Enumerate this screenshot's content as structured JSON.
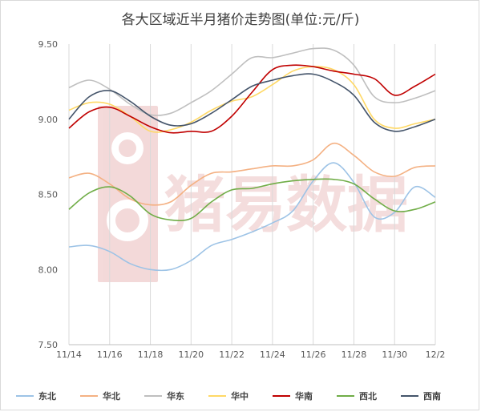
{
  "chart_data": {
    "type": "line",
    "title": "各大区域近半月猪价走势图(单位:元/斤)",
    "x": [
      "11/14",
      "11/15",
      "11/16",
      "11/17",
      "11/18",
      "11/19",
      "11/20",
      "11/21",
      "11/22",
      "11/23",
      "11/24",
      "11/25",
      "11/26",
      "11/27",
      "11/28",
      "11/29",
      "11/30",
      "12/1",
      "12/2"
    ],
    "x_tick_labels": [
      "11/14",
      "11/16",
      "11/18",
      "11/20",
      "11/22",
      "11/24",
      "11/26",
      "11/28",
      "11/30",
      "12/2"
    ],
    "y_tick_labels": [
      "7.50",
      "8.00",
      "8.50",
      "9.00",
      "9.50"
    ],
    "ylim": [
      7.5,
      9.5
    ],
    "grid": "vertical",
    "legend_position": "bottom",
    "series": [
      {
        "name": "东北",
        "color": "#9dc3e6",
        "values": [
          8.15,
          8.16,
          8.12,
          8.04,
          8.0,
          8.0,
          8.06,
          8.16,
          8.2,
          8.25,
          8.31,
          8.39,
          8.59,
          8.71,
          8.58,
          8.35,
          8.38,
          8.55,
          8.48
        ]
      },
      {
        "name": "华北",
        "color": "#f4b183",
        "values": [
          8.61,
          8.64,
          8.57,
          8.47,
          8.43,
          8.45,
          8.56,
          8.64,
          8.65,
          8.67,
          8.69,
          8.69,
          8.73,
          8.84,
          8.76,
          8.65,
          8.62,
          8.68,
          8.69
        ]
      },
      {
        "name": "华东",
        "color": "#bfbfbf",
        "values": [
          9.21,
          9.26,
          9.2,
          9.1,
          9.03,
          9.04,
          9.11,
          9.19,
          9.3,
          9.41,
          9.41,
          9.44,
          9.47,
          9.46,
          9.36,
          9.15,
          9.11,
          9.14,
          9.19
        ]
      },
      {
        "name": "华中",
        "color": "#ffd966",
        "values": [
          9.06,
          9.11,
          9.1,
          9.02,
          8.92,
          8.93,
          8.98,
          9.06,
          9.12,
          9.15,
          9.23,
          9.32,
          9.35,
          9.33,
          9.23,
          9.0,
          8.94,
          8.97,
          9.0
        ]
      },
      {
        "name": "华南",
        "color": "#c00000",
        "values": [
          8.94,
          9.05,
          9.08,
          9.02,
          8.95,
          8.91,
          8.92,
          8.92,
          9.02,
          9.18,
          9.33,
          9.36,
          9.35,
          9.32,
          9.3,
          9.27,
          9.16,
          9.22,
          9.3
        ]
      },
      {
        "name": "西北",
        "color": "#70ad47",
        "values": [
          8.4,
          8.51,
          8.55,
          8.49,
          8.37,
          8.33,
          8.34,
          8.45,
          8.53,
          8.54,
          8.57,
          8.59,
          8.6,
          8.6,
          8.57,
          8.47,
          8.39,
          8.4,
          8.45
        ]
      },
      {
        "name": "西南",
        "color": "#44546a",
        "values": [
          9.0,
          9.15,
          9.19,
          9.12,
          9.02,
          8.96,
          8.97,
          9.04,
          9.13,
          9.22,
          9.26,
          9.29,
          9.3,
          9.25,
          9.16,
          8.98,
          8.92,
          8.95,
          9.0
        ]
      }
    ]
  },
  "watermark": {
    "text": "猪易数据",
    "color": "#c84646"
  }
}
